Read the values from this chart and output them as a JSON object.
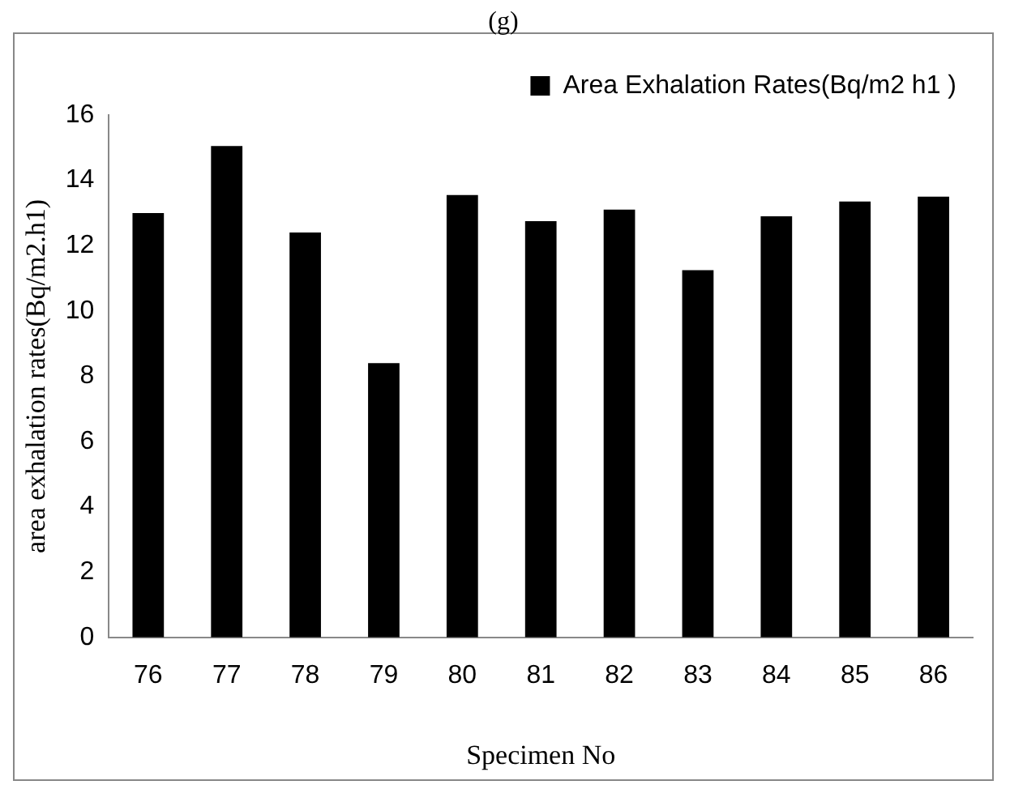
{
  "chart_data": {
    "type": "bar",
    "title": "(g)",
    "xlabel": "Specimen No",
    "ylabel": "area exhalation rates(Bq/m2.h1)",
    "categories": [
      "76",
      "77",
      "78",
      "79",
      "80",
      "81",
      "82",
      "83",
      "84",
      "85",
      "86"
    ],
    "series": [
      {
        "name": "Area Exhalation Rates(Bq/m2 h1 )",
        "color": "#000000",
        "values": [
          13.0,
          15.05,
          12.4,
          8.4,
          13.55,
          12.75,
          13.1,
          11.25,
          12.9,
          13.35,
          13.5
        ]
      }
    ],
    "ylim": [
      0,
      16
    ],
    "yticks": [
      0,
      2,
      4,
      6,
      8,
      10,
      12,
      14,
      16
    ],
    "grid": false,
    "legend": "top right"
  }
}
